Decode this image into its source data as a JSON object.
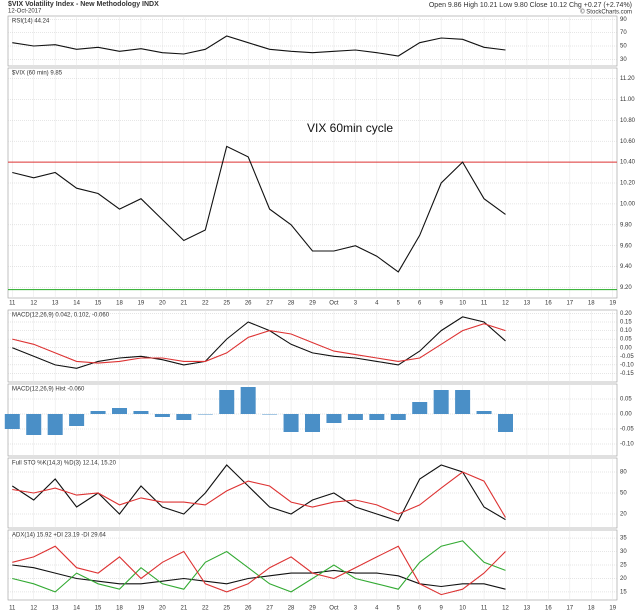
{
  "header": {
    "title": "$VIX Volatility Index - New Methodology INDX",
    "date": "12-Oct-2017",
    "quote": "Open 9.86 High 10.21 Low 9.80 Close 10.12 Chg +0.27 (+2.74%)",
    "credit": "© StockCharts.com"
  },
  "x": [
    0,
    1,
    2,
    3,
    4,
    5,
    6,
    7,
    8,
    9,
    10,
    11,
    12,
    13,
    14,
    15,
    16,
    17,
    18,
    19,
    20,
    21,
    22,
    23
  ],
  "xlim": [
    -0.2,
    28.2
  ],
  "xticks": [
    {
      "value": 0,
      "label": "11"
    },
    {
      "value": 1,
      "label": "12"
    },
    {
      "value": 2,
      "label": "13"
    },
    {
      "value": 3,
      "label": "14"
    },
    {
      "value": 4,
      "label": "15"
    },
    {
      "value": 5,
      "label": "18"
    },
    {
      "value": 6,
      "label": "19"
    },
    {
      "value": 7,
      "label": "20"
    },
    {
      "value": 8,
      "label": "21"
    },
    {
      "value": 9,
      "label": "22"
    },
    {
      "value": 10,
      "label": "25"
    },
    {
      "value": 11,
      "label": "26"
    },
    {
      "value": 12,
      "label": "27"
    },
    {
      "value": 13,
      "label": "28"
    },
    {
      "value": 14,
      "label": "29"
    },
    {
      "value": 15,
      "label": "Oct"
    },
    {
      "value": 16,
      "label": "3"
    },
    {
      "value": 17,
      "label": "4"
    },
    {
      "value": 18,
      "label": "5"
    },
    {
      "value": 19,
      "label": "6"
    },
    {
      "value": 20,
      "label": "9"
    },
    {
      "value": 21,
      "label": "10"
    },
    {
      "value": 22,
      "label": "11"
    },
    {
      "value": 23,
      "label": "12"
    },
    {
      "value": 24,
      "label": "13"
    },
    {
      "value": 25,
      "label": "16"
    },
    {
      "value": 26,
      "label": "17"
    },
    {
      "value": 27,
      "label": "18"
    },
    {
      "value": 28,
      "label": "19"
    }
  ],
  "chart_data": [
    {
      "type": "line",
      "legend": "RSI(14) 44.24",
      "ylim": [
        20,
        95
      ],
      "yticks": [
        30,
        50,
        70,
        90
      ],
      "grid": true,
      "series": [
        {
          "name": "RSI",
          "color": "#111",
          "values": [
            55,
            50,
            52,
            45,
            48,
            42,
            46,
            40,
            38,
            45,
            65,
            55,
            45,
            42,
            40,
            42,
            44,
            40,
            35,
            55,
            62,
            60,
            48,
            44
          ]
        }
      ]
    },
    {
      "type": "line",
      "legend": "$VIX (60 min) 9.85",
      "annotation": "VIX 60min cycle",
      "ylim": [
        9.1,
        11.3
      ],
      "yticks": [
        {
          "value": 11.2,
          "label": "11.20"
        },
        {
          "value": 11.0,
          "label": "11.00"
        },
        {
          "value": 10.8,
          "label": "10.80"
        },
        {
          "value": 10.6,
          "label": "10.60"
        },
        {
          "value": 10.4,
          "label": "10.40"
        },
        {
          "value": 10.2,
          "label": "10.20"
        },
        {
          "value": 10.0,
          "label": "10.00"
        },
        {
          "value": 9.8,
          "label": "9.80"
        },
        {
          "value": 9.6,
          "label": "9.60"
        },
        {
          "value": 9.4,
          "label": "9.40"
        },
        {
          "value": 9.2,
          "label": "9.20"
        }
      ],
      "grid": true,
      "reference_lines": [
        {
          "value": 10.4,
          "color": "#d33"
        },
        {
          "value": 9.18,
          "color": "#2a2"
        }
      ],
      "series": [
        {
          "name": "$VIX",
          "color": "#111",
          "values": [
            10.3,
            10.25,
            10.3,
            10.15,
            10.1,
            9.95,
            10.05,
            9.85,
            9.65,
            9.75,
            10.55,
            10.45,
            9.95,
            9.8,
            9.55,
            9.55,
            9.6,
            9.5,
            9.35,
            9.7,
            10.2,
            10.4,
            10.05,
            9.9
          ]
        }
      ]
    },
    {
      "type": "line",
      "legend": "MACD(12,26,9) 0.042, 0.102, -0.060",
      "ylim": [
        -0.2,
        0.22
      ],
      "yticks": [
        {
          "value": 0.2,
          "label": "0.20"
        },
        0.15,
        {
          "value": 0.1,
          "label": "0.10"
        },
        0.05,
        {
          "value": 0,
          "label": "0.00"
        },
        -0.05,
        {
          "value": -0.1,
          "label": "-0.10"
        },
        -0.15
      ],
      "grid": true,
      "series": [
        {
          "name": "MACD",
          "color": "#111",
          "values": [
            0.0,
            -0.05,
            -0.1,
            -0.12,
            -0.08,
            -0.06,
            -0.05,
            -0.07,
            -0.1,
            -0.08,
            0.05,
            0.15,
            0.1,
            0.02,
            -0.03,
            -0.05,
            -0.06,
            -0.08,
            -0.1,
            -0.02,
            0.1,
            0.18,
            0.15,
            0.04
          ]
        },
        {
          "name": "Signal",
          "color": "#d33",
          "values": [
            0.05,
            0.02,
            -0.03,
            -0.08,
            -0.09,
            -0.08,
            -0.06,
            -0.06,
            -0.08,
            -0.08,
            -0.03,
            0.06,
            0.1,
            0.08,
            0.03,
            -0.02,
            -0.04,
            -0.06,
            -0.08,
            -0.06,
            0.02,
            0.1,
            0.14,
            0.1
          ]
        }
      ]
    },
    {
      "type": "bar",
      "legend": "MACD(12,26,9) Hist -0.060",
      "ylim": [
        -0.14,
        0.1
      ],
      "yticks": [
        0.05,
        {
          "value": 0,
          "label": "0.00"
        },
        -0.05,
        {
          "value": -0.1,
          "label": "-0.10"
        }
      ],
      "grid": true,
      "series": [
        {
          "name": "Hist",
          "color": "#4a8fc7",
          "values": [
            -0.05,
            -0.07,
            -0.07,
            -0.04,
            0.01,
            0.02,
            0.01,
            -0.01,
            -0.02,
            0.0,
            0.08,
            0.09,
            0.0,
            -0.06,
            -0.06,
            -0.03,
            -0.02,
            -0.02,
            -0.02,
            0.04,
            0.08,
            0.08,
            0.01,
            -0.06
          ]
        }
      ]
    },
    {
      "type": "line",
      "legend": "Full STO %K(14,3) %D(3) 12.14, 15.20",
      "ylim": [
        0,
        100
      ],
      "yticks": [
        20,
        50,
        80
      ],
      "grid": true,
      "series": [
        {
          "name": "%K",
          "color": "#111",
          "values": [
            60,
            40,
            70,
            30,
            50,
            20,
            60,
            30,
            20,
            50,
            90,
            60,
            30,
            20,
            40,
            50,
            30,
            20,
            10,
            70,
            90,
            80,
            30,
            12
          ]
        },
        {
          "name": "%D",
          "color": "#d33",
          "values": [
            55,
            50,
            57,
            47,
            50,
            33,
            43,
            37,
            37,
            33,
            53,
            67,
            60,
            37,
            30,
            37,
            40,
            33,
            20,
            33,
            57,
            80,
            67,
            15
          ]
        }
      ]
    },
    {
      "type": "line",
      "legend": "ADX(14) 15.92 +DI 23.19 -DI 29.64",
      "ylim": [
        12,
        38
      ],
      "yticks": [
        15,
        20,
        25,
        30,
        35
      ],
      "grid": true,
      "series": [
        {
          "name": "ADX",
          "color": "#111",
          "values": [
            25,
            24,
            22,
            20,
            19,
            18,
            18,
            19,
            20,
            19,
            18,
            20,
            21,
            22,
            22,
            23,
            22,
            22,
            21,
            18,
            17,
            18,
            18,
            16
          ]
        },
        {
          "name": "+DI",
          "color": "#3a3",
          "values": [
            20,
            18,
            15,
            22,
            18,
            16,
            24,
            18,
            16,
            26,
            30,
            24,
            18,
            15,
            20,
            25,
            20,
            18,
            16,
            26,
            32,
            34,
            26,
            23
          ]
        },
        {
          "name": "-DI",
          "color": "#d33",
          "values": [
            26,
            28,
            32,
            24,
            22,
            28,
            20,
            26,
            30,
            18,
            15,
            18,
            24,
            28,
            22,
            20,
            24,
            28,
            32,
            18,
            14,
            16,
            22,
            30
          ]
        }
      ]
    }
  ]
}
